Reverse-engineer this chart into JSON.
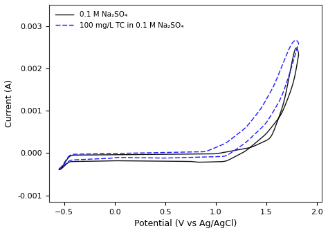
{
  "title": "",
  "xlabel": "Potential (V vs Ag/AgCl)",
  "ylabel": "Current (A)",
  "xlim": [
    -0.65,
    2.05
  ],
  "ylim": [
    -0.00115,
    0.0035
  ],
  "legend1": "0.1 M Na₂SO₄",
  "legend2": "100 mg/L TC in 0.1 M Na₂SO₄",
  "xticks": [
    -0.5,
    0.0,
    0.5,
    1.0,
    1.5,
    2.0
  ],
  "yticks": [
    -0.001,
    0.0,
    0.001,
    0.002,
    0.003
  ],
  "black_color": "#111111",
  "blue_color": "#1a1aff",
  "background": "#ffffff"
}
